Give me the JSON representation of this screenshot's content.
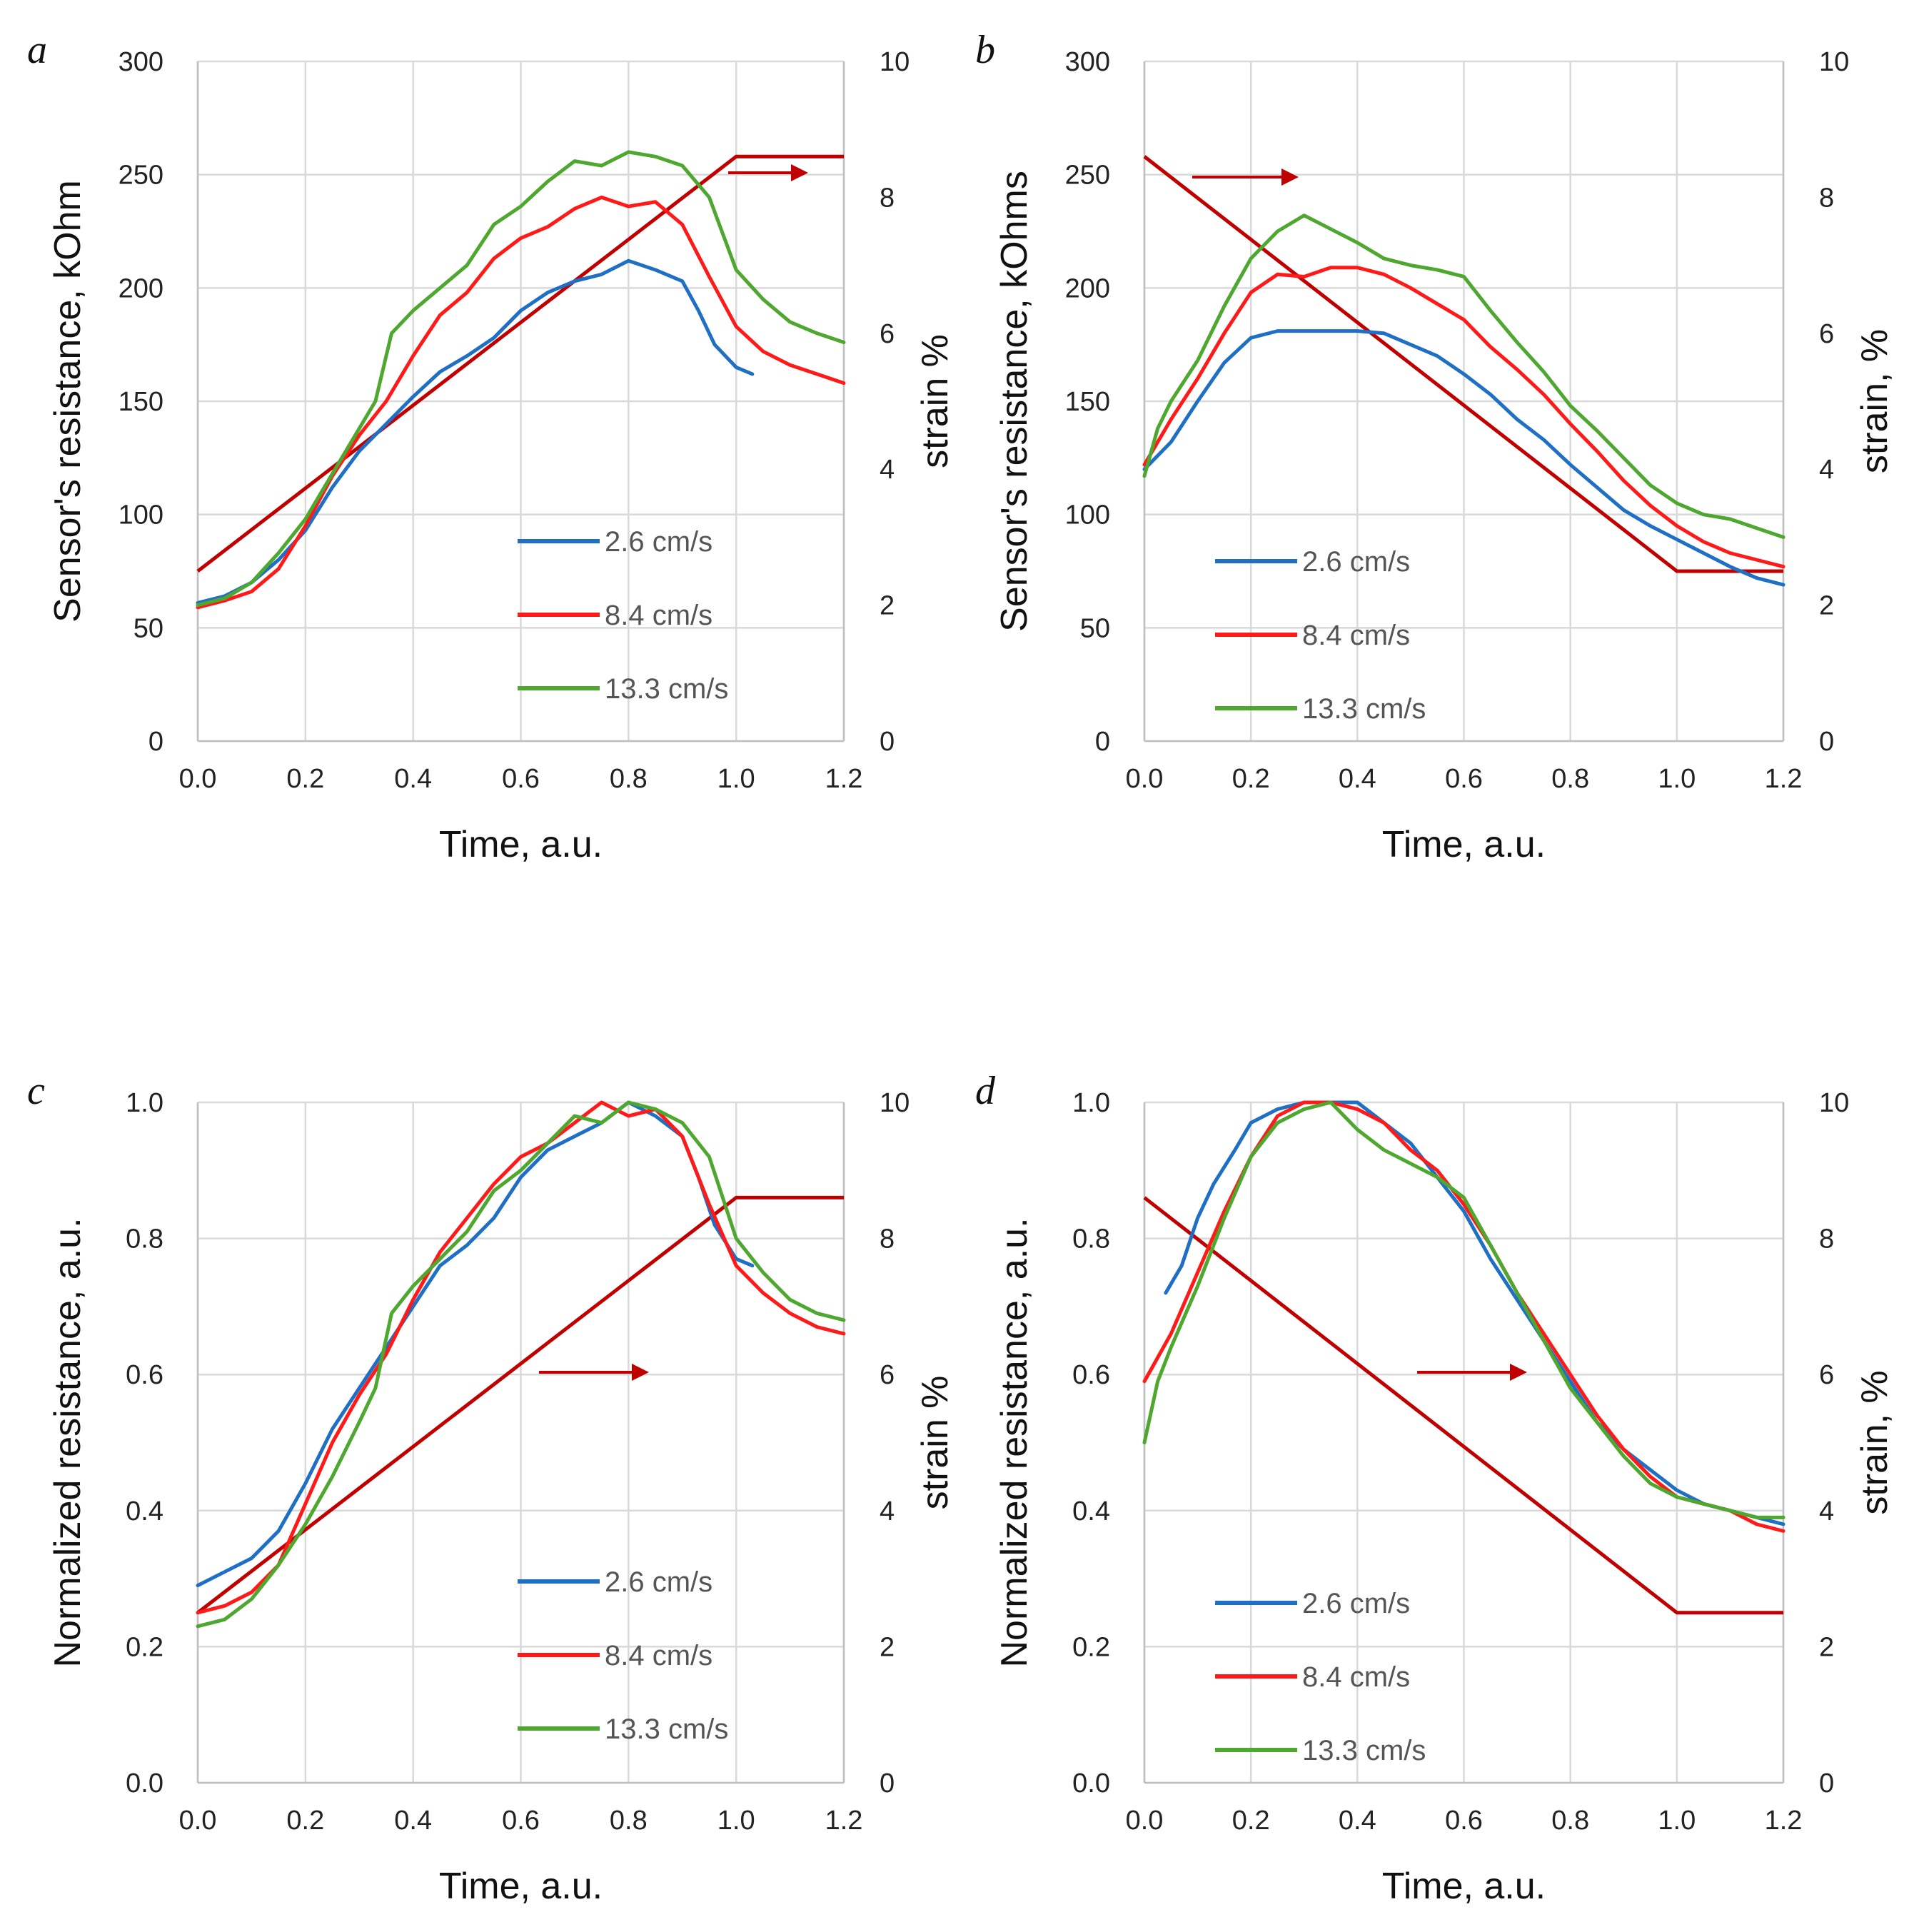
{
  "colors": {
    "blue": "#1f6fc5",
    "red": "#ff1a1a",
    "green": "#4ea72e",
    "strain": "#c00000"
  },
  "chart_data": [
    {
      "panel": "a",
      "type": "line",
      "xlabel": "Time, a.u.",
      "ylabel": "Sensor's resistance, kOhm",
      "y2label": "strain  %",
      "xlim": [
        0,
        1.2
      ],
      "ylim": [
        0,
        300
      ],
      "y2lim": [
        0,
        10
      ],
      "x_ticks": [
        "0.0",
        "0.2",
        "0.4",
        "0.6",
        "0.8",
        "1.0",
        "1.2"
      ],
      "y_ticks": [
        "0",
        "50",
        "100",
        "150",
        "200",
        "250",
        "300"
      ],
      "y2_ticks": [
        "0",
        "2",
        "4",
        "6",
        "8",
        "10"
      ],
      "grid": true,
      "legend_position": "lower-right",
      "series": [
        {
          "name": "2.6 cm/s",
          "color": "blue",
          "x": [
            0,
            0.05,
            0.1,
            0.15,
            0.2,
            0.25,
            0.3,
            0.35,
            0.4,
            0.45,
            0.5,
            0.55,
            0.6,
            0.65,
            0.7,
            0.75,
            0.8,
            0.85,
            0.9,
            0.93,
            0.96,
            1.0,
            1.03
          ],
          "y": [
            61,
            64,
            70,
            80,
            93,
            112,
            128,
            140,
            152,
            163,
            170,
            178,
            190,
            198,
            203,
            206,
            212,
            208,
            203,
            190,
            175,
            165,
            162
          ]
        },
        {
          "name": "8.4 cm/s",
          "color": "red",
          "x": [
            0,
            0.05,
            0.1,
            0.15,
            0.2,
            0.25,
            0.3,
            0.35,
            0.4,
            0.45,
            0.5,
            0.55,
            0.6,
            0.65,
            0.7,
            0.75,
            0.8,
            0.85,
            0.9,
            0.95,
            1.0,
            1.05,
            1.1,
            1.15,
            1.2
          ],
          "y": [
            59,
            62,
            66,
            76,
            95,
            117,
            135,
            150,
            170,
            188,
            198,
            213,
            222,
            227,
            235,
            240,
            236,
            238,
            228,
            205,
            183,
            172,
            166,
            162,
            158
          ]
        },
        {
          "name": "13.3 cm/s",
          "color": "green",
          "x": [
            0,
            0.05,
            0.1,
            0.15,
            0.2,
            0.25,
            0.3,
            0.33,
            0.36,
            0.4,
            0.45,
            0.5,
            0.55,
            0.6,
            0.65,
            0.7,
            0.75,
            0.8,
            0.85,
            0.9,
            0.95,
            1.0,
            1.05,
            1.1,
            1.15,
            1.2
          ],
          "y": [
            60,
            63,
            70,
            83,
            98,
            118,
            138,
            150,
            180,
            190,
            200,
            210,
            228,
            236,
            247,
            256,
            254,
            260,
            258,
            254,
            240,
            208,
            195,
            185,
            180,
            176
          ]
        }
      ],
      "strain": {
        "x": [
          0,
          1.0,
          1.2
        ],
        "y": [
          2.5,
          8.6,
          8.6
        ]
      }
    },
    {
      "panel": "b",
      "type": "line",
      "xlabel": "Time, a.u.",
      "ylabel": "Sensor's resistance, kOhms",
      "y2label": "strain, %",
      "xlim": [
        0,
        1.2
      ],
      "ylim": [
        0,
        300
      ],
      "y2lim": [
        0,
        10
      ],
      "x_ticks": [
        "0.0",
        "0.2",
        "0.4",
        "0.6",
        "0.8",
        "1.0",
        "1.2"
      ],
      "y_ticks": [
        "0",
        "50",
        "100",
        "150",
        "200",
        "250",
        "300"
      ],
      "y2_ticks": [
        "0",
        "2",
        "4",
        "6",
        "8",
        "10"
      ],
      "grid": true,
      "legend_position": "lower-left",
      "series": [
        {
          "name": "2.6 cm/s",
          "color": "blue",
          "x": [
            0,
            0.05,
            0.1,
            0.15,
            0.2,
            0.25,
            0.3,
            0.35,
            0.4,
            0.45,
            0.5,
            0.55,
            0.6,
            0.65,
            0.7,
            0.75,
            0.8,
            0.85,
            0.9,
            0.95,
            1.0,
            1.05,
            1.1,
            1.15,
            1.2
          ],
          "y": [
            120,
            132,
            150,
            167,
            178,
            181,
            181,
            181,
            181,
            180,
            175,
            170,
            162,
            153,
            142,
            133,
            122,
            112,
            102,
            95,
            89,
            83,
            77,
            72,
            69
          ]
        },
        {
          "name": "8.4 cm/s",
          "color": "red",
          "x": [
            0,
            0.05,
            0.1,
            0.15,
            0.2,
            0.25,
            0.3,
            0.35,
            0.4,
            0.45,
            0.5,
            0.55,
            0.6,
            0.65,
            0.7,
            0.75,
            0.8,
            0.85,
            0.9,
            0.95,
            1.0,
            1.05,
            1.1,
            1.15,
            1.2
          ],
          "y": [
            122,
            142,
            160,
            180,
            198,
            206,
            205,
            209,
            209,
            206,
            200,
            193,
            186,
            174,
            164,
            153,
            140,
            128,
            115,
            104,
            95,
            88,
            83,
            80,
            77
          ]
        },
        {
          "name": "13.3 cm/s",
          "color": "green",
          "x": [
            0,
            0.025,
            0.05,
            0.1,
            0.15,
            0.2,
            0.25,
            0.3,
            0.35,
            0.4,
            0.45,
            0.5,
            0.55,
            0.6,
            0.65,
            0.7,
            0.75,
            0.8,
            0.85,
            0.9,
            0.95,
            1.0,
            1.05,
            1.1,
            1.15,
            1.2
          ],
          "y": [
            117,
            138,
            150,
            168,
            192,
            213,
            225,
            232,
            226,
            220,
            213,
            210,
            208,
            205,
            190,
            176,
            163,
            148,
            137,
            125,
            113,
            105,
            100,
            98,
            94,
            90
          ]
        }
      ],
      "strain": {
        "x": [
          0,
          1.0,
          1.2
        ],
        "y": [
          8.6,
          2.5,
          2.5
        ]
      }
    },
    {
      "panel": "c",
      "type": "line",
      "xlabel": "Time, a.u.",
      "ylabel": "Normalized resistance, a.u.",
      "y2label": "strain  %",
      "xlim": [
        0,
        1.2
      ],
      "ylim": [
        0,
        1
      ],
      "y2lim": [
        0,
        10
      ],
      "x_ticks": [
        "0.0",
        "0.2",
        "0.4",
        "0.6",
        "0.8",
        "1.0",
        "1.2"
      ],
      "y_ticks": [
        "0.0",
        "0.2",
        "0.4",
        "0.6",
        "0.8",
        "1.0"
      ],
      "y2_ticks": [
        "0",
        "2",
        "4",
        "6",
        "8",
        "10"
      ],
      "grid": true,
      "legend_position": "lower-right",
      "series": [
        {
          "name": "2.6 cm/s",
          "color": "blue",
          "x": [
            0,
            0.05,
            0.1,
            0.15,
            0.2,
            0.25,
            0.3,
            0.35,
            0.4,
            0.45,
            0.5,
            0.55,
            0.6,
            0.65,
            0.7,
            0.75,
            0.8,
            0.85,
            0.9,
            0.93,
            0.96,
            1.0,
            1.03
          ],
          "y": [
            0.29,
            0.31,
            0.33,
            0.37,
            0.44,
            0.52,
            0.58,
            0.64,
            0.7,
            0.76,
            0.79,
            0.83,
            0.89,
            0.93,
            0.95,
            0.97,
            1.0,
            0.98,
            0.95,
            0.89,
            0.82,
            0.77,
            0.76
          ]
        },
        {
          "name": "8.4 cm/s",
          "color": "red",
          "x": [
            0,
            0.05,
            0.1,
            0.15,
            0.2,
            0.25,
            0.3,
            0.35,
            0.4,
            0.45,
            0.5,
            0.55,
            0.6,
            0.65,
            0.7,
            0.75,
            0.8,
            0.85,
            0.9,
            0.95,
            1.0,
            1.05,
            1.1,
            1.15,
            1.2
          ],
          "y": [
            0.25,
            0.26,
            0.28,
            0.32,
            0.41,
            0.5,
            0.57,
            0.63,
            0.71,
            0.78,
            0.83,
            0.88,
            0.92,
            0.94,
            0.97,
            1.0,
            0.98,
            0.99,
            0.95,
            0.85,
            0.76,
            0.72,
            0.69,
            0.67,
            0.66
          ]
        },
        {
          "name": "13.3 cm/s",
          "color": "green",
          "x": [
            0,
            0.05,
            0.1,
            0.15,
            0.2,
            0.25,
            0.3,
            0.33,
            0.36,
            0.4,
            0.45,
            0.5,
            0.55,
            0.6,
            0.65,
            0.7,
            0.75,
            0.8,
            0.85,
            0.9,
            0.95,
            1.0,
            1.05,
            1.1,
            1.15,
            1.2
          ],
          "y": [
            0.23,
            0.24,
            0.27,
            0.32,
            0.38,
            0.45,
            0.53,
            0.58,
            0.69,
            0.73,
            0.77,
            0.81,
            0.87,
            0.9,
            0.94,
            0.98,
            0.97,
            1.0,
            0.99,
            0.97,
            0.92,
            0.8,
            0.75,
            0.71,
            0.69,
            0.68
          ]
        }
      ],
      "strain": {
        "x": [
          0,
          1.0,
          1.2
        ],
        "y": [
          2.5,
          8.6,
          8.6
        ]
      }
    },
    {
      "panel": "d",
      "type": "line",
      "xlabel": "Time, a.u.",
      "ylabel": "Normalized resistance, a.u.",
      "y2label": "strain, %",
      "xlim": [
        0,
        1.2
      ],
      "ylim": [
        0,
        1
      ],
      "y2lim": [
        0,
        10
      ],
      "x_ticks": [
        "0.0",
        "0.2",
        "0.4",
        "0.6",
        "0.8",
        "1.0",
        "1.2"
      ],
      "y_ticks": [
        "0.0",
        "0.2",
        "0.4",
        "0.6",
        "0.8",
        "1.0"
      ],
      "y2_ticks": [
        "0",
        "2",
        "4",
        "6",
        "8",
        "10"
      ],
      "grid": true,
      "legend_position": "lower-left",
      "series": [
        {
          "name": "2.6 cm/s",
          "color": "blue",
          "x": [
            0.04,
            0.07,
            0.1,
            0.13,
            0.17,
            0.2,
            0.25,
            0.3,
            0.35,
            0.4,
            0.45,
            0.5,
            0.55,
            0.6,
            0.65,
            0.7,
            0.75,
            0.8,
            0.85,
            0.9,
            0.95,
            1.0,
            1.05,
            1.1,
            1.15,
            1.2
          ],
          "y": [
            0.72,
            0.76,
            0.83,
            0.88,
            0.93,
            0.97,
            0.99,
            1.0,
            1.0,
            1.0,
            0.97,
            0.94,
            0.89,
            0.84,
            0.77,
            0.71,
            0.65,
            0.59,
            0.53,
            0.49,
            0.46,
            0.43,
            0.41,
            0.4,
            0.39,
            0.38
          ]
        },
        {
          "name": "8.4 cm/s",
          "color": "red",
          "x": [
            0,
            0.05,
            0.1,
            0.15,
            0.2,
            0.25,
            0.3,
            0.35,
            0.4,
            0.45,
            0.5,
            0.55,
            0.6,
            0.65,
            0.7,
            0.75,
            0.8,
            0.85,
            0.9,
            0.95,
            1.0,
            1.05,
            1.1,
            1.15,
            1.2
          ],
          "y": [
            0.59,
            0.66,
            0.75,
            0.84,
            0.92,
            0.98,
            1.0,
            1.0,
            0.99,
            0.97,
            0.93,
            0.9,
            0.85,
            0.79,
            0.72,
            0.66,
            0.6,
            0.54,
            0.49,
            0.45,
            0.42,
            0.41,
            0.4,
            0.38,
            0.37
          ]
        },
        {
          "name": "13.3 cm/s",
          "color": "green",
          "x": [
            0,
            0.025,
            0.05,
            0.1,
            0.15,
            0.2,
            0.25,
            0.3,
            0.35,
            0.4,
            0.45,
            0.5,
            0.55,
            0.6,
            0.65,
            0.7,
            0.75,
            0.8,
            0.85,
            0.9,
            0.95,
            1.0,
            1.05,
            1.1,
            1.15,
            1.2
          ],
          "y": [
            0.5,
            0.59,
            0.64,
            0.73,
            0.83,
            0.92,
            0.97,
            0.99,
            1.0,
            0.96,
            0.93,
            0.91,
            0.89,
            0.86,
            0.79,
            0.72,
            0.65,
            0.58,
            0.53,
            0.48,
            0.44,
            0.42,
            0.41,
            0.4,
            0.39,
            0.39
          ]
        }
      ],
      "strain": {
        "x": [
          0,
          1.0,
          1.2
        ],
        "y": [
          8.6,
          2.5,
          2.5
        ]
      }
    }
  ]
}
